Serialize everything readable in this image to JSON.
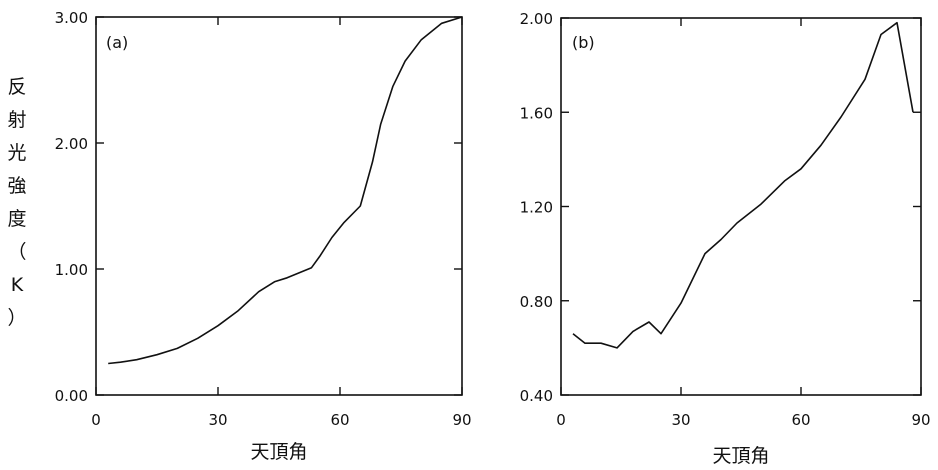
{
  "chart_data": [
    {
      "type": "line",
      "panel_label": "(a)",
      "xlabel": "天頂角",
      "ylabel": "反射光強度（K）",
      "xlim": [
        0,
        90
      ],
      "ylim": [
        0,
        3
      ],
      "xticks": [
        "0",
        "30",
        "60",
        "90"
      ],
      "yticks": [
        "0.00",
        "1.00",
        "2.00",
        "3.00"
      ],
      "grid": false,
      "series": [
        {
          "x": [
            3,
            6,
            10,
            15,
            20,
            25,
            30,
            35,
            40,
            44,
            47,
            50,
            53,
            55,
            58,
            61,
            65,
            68,
            70,
            73,
            76,
            80,
            85,
            90
          ],
          "y": [
            0.25,
            0.26,
            0.28,
            0.32,
            0.37,
            0.45,
            0.55,
            0.67,
            0.82,
            0.9,
            0.93,
            0.97,
            1.01,
            1.1,
            1.25,
            1.37,
            1.5,
            1.85,
            2.15,
            2.45,
            2.65,
            2.82,
            2.95,
            3.0
          ]
        }
      ]
    },
    {
      "type": "line",
      "panel_label": "(b)",
      "xlabel": "天頂角",
      "ylabel": "",
      "xlim": [
        0,
        90
      ],
      "ylim": [
        0.4,
        2.0
      ],
      "xticks": [
        "0",
        "30",
        "60",
        "90"
      ],
      "yticks": [
        "0.40",
        "0.80",
        "1.20",
        "1.60",
        "2.00"
      ],
      "grid": false,
      "series": [
        {
          "x": [
            3,
            6,
            10,
            14,
            18,
            22,
            25,
            30,
            36,
            40,
            44,
            50,
            56,
            60,
            65,
            70,
            76,
            80,
            84,
            88
          ],
          "y": [
            0.66,
            0.62,
            0.62,
            0.6,
            0.67,
            0.71,
            0.66,
            0.79,
            1.0,
            1.06,
            1.13,
            1.21,
            1.31,
            1.36,
            1.46,
            1.58,
            1.74,
            1.93,
            1.98,
            1.6
          ]
        }
      ]
    }
  ]
}
